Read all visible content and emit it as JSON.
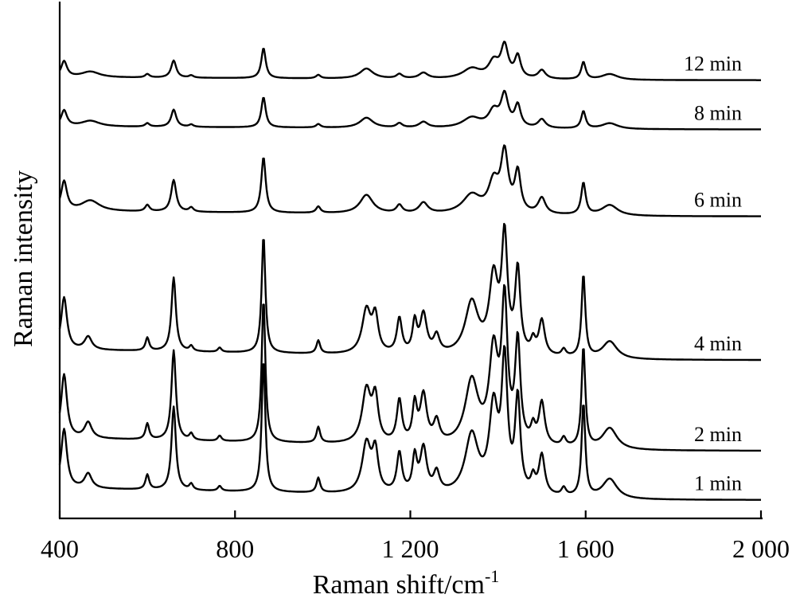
{
  "chart_data": {
    "type": "line",
    "xlabel": "Raman shift/cm",
    "xlabel_superscript": "-1",
    "ylabel": "Raman intensity",
    "xlim": [
      400,
      2000
    ],
    "x_ticks": [
      400,
      800,
      1200,
      1600,
      2000
    ],
    "x_tick_labels": [
      "400",
      "800",
      "1 200",
      "1 600",
      "2 000"
    ],
    "y_ticks": [],
    "grid": false,
    "legend": "none",
    "stacking": "vertically offset spectra, labels at right end of each trace",
    "series": [
      {
        "name": "12 min",
        "offset": 5.55,
        "scale": 0.38,
        "tilt": 0.1,
        "peaks": [
          [
            410,
            0.55,
            8
          ],
          [
            470,
            0.2,
            25
          ],
          [
            600,
            0.12,
            6
          ],
          [
            660,
            0.6,
            7
          ],
          [
            700,
            0.08,
            6
          ],
          [
            865,
            1.05,
            6
          ],
          [
            990,
            0.12,
            6
          ],
          [
            1100,
            0.35,
            18
          ],
          [
            1175,
            0.15,
            8
          ],
          [
            1230,
            0.2,
            12
          ],
          [
            1340,
            0.35,
            25
          ],
          [
            1390,
            0.55,
            14
          ],
          [
            1415,
            1.1,
            10
          ],
          [
            1445,
            0.75,
            8
          ],
          [
            1500,
            0.3,
            10
          ],
          [
            1595,
            0.6,
            6
          ],
          [
            1655,
            0.2,
            22
          ]
        ]
      },
      {
        "name": "8 min",
        "offset": 4.9,
        "scale": 0.38,
        "tilt": 0.1,
        "peaks": [
          [
            410,
            0.55,
            8
          ],
          [
            470,
            0.2,
            25
          ],
          [
            600,
            0.12,
            6
          ],
          [
            660,
            0.6,
            7
          ],
          [
            700,
            0.08,
            6
          ],
          [
            865,
            1.05,
            6
          ],
          [
            990,
            0.12,
            6
          ],
          [
            1100,
            0.35,
            18
          ],
          [
            1175,
            0.15,
            8
          ],
          [
            1230,
            0.2,
            12
          ],
          [
            1340,
            0.35,
            25
          ],
          [
            1390,
            0.55,
            14
          ],
          [
            1415,
            1.1,
            10
          ],
          [
            1445,
            0.75,
            8
          ],
          [
            1500,
            0.3,
            10
          ],
          [
            1595,
            0.6,
            6
          ],
          [
            1655,
            0.2,
            22
          ]
        ]
      },
      {
        "name": "6 min",
        "offset": 3.75,
        "scale": 0.7,
        "tilt": 0.1,
        "peaks": [
          [
            410,
            0.55,
            8
          ],
          [
            470,
            0.2,
            25
          ],
          [
            600,
            0.12,
            6
          ],
          [
            660,
            0.6,
            7
          ],
          [
            700,
            0.08,
            6
          ],
          [
            865,
            1.05,
            6
          ],
          [
            990,
            0.12,
            6
          ],
          [
            1100,
            0.35,
            18
          ],
          [
            1175,
            0.15,
            8
          ],
          [
            1230,
            0.2,
            12
          ],
          [
            1340,
            0.35,
            25
          ],
          [
            1390,
            0.55,
            14
          ],
          [
            1415,
            1.1,
            10
          ],
          [
            1445,
            0.75,
            8
          ],
          [
            1500,
            0.3,
            10
          ],
          [
            1595,
            0.6,
            6
          ],
          [
            1655,
            0.2,
            22
          ]
        ]
      },
      {
        "name": "4 min",
        "offset": 1.85,
        "scale": 1.15,
        "tilt": 0.12,
        "peaks": [
          [
            410,
            0.6,
            8
          ],
          [
            465,
            0.15,
            10
          ],
          [
            600,
            0.15,
            5
          ],
          [
            660,
            0.85,
            6
          ],
          [
            700,
            0.06,
            5
          ],
          [
            765,
            0.05,
            5
          ],
          [
            865,
            1.35,
            5
          ],
          [
            990,
            0.15,
            5
          ],
          [
            1100,
            0.5,
            12
          ],
          [
            1120,
            0.4,
            8
          ],
          [
            1175,
            0.4,
            7
          ],
          [
            1210,
            0.35,
            6
          ],
          [
            1230,
            0.45,
            9
          ],
          [
            1260,
            0.2,
            8
          ],
          [
            1340,
            0.6,
            18
          ],
          [
            1390,
            0.85,
            12
          ],
          [
            1415,
            1.3,
            8
          ],
          [
            1445,
            0.95,
            7
          ],
          [
            1480,
            0.15,
            6
          ],
          [
            1500,
            0.4,
            8
          ],
          [
            1550,
            0.08,
            6
          ],
          [
            1595,
            0.95,
            5
          ],
          [
            1655,
            0.2,
            20
          ]
        ]
      },
      {
        "name": "2 min",
        "offset": 0.65,
        "scale": 1.4,
        "tilt": 0.12,
        "peaks": [
          [
            410,
            0.6,
            8
          ],
          [
            465,
            0.15,
            10
          ],
          [
            600,
            0.15,
            5
          ],
          [
            660,
            0.85,
            6
          ],
          [
            700,
            0.06,
            5
          ],
          [
            765,
            0.05,
            5
          ],
          [
            865,
            1.35,
            5
          ],
          [
            990,
            0.15,
            5
          ],
          [
            1100,
            0.5,
            12
          ],
          [
            1120,
            0.4,
            8
          ],
          [
            1175,
            0.4,
            7
          ],
          [
            1210,
            0.35,
            6
          ],
          [
            1230,
            0.45,
            9
          ],
          [
            1260,
            0.2,
            8
          ],
          [
            1340,
            0.6,
            18
          ],
          [
            1390,
            0.85,
            12
          ],
          [
            1415,
            1.3,
            8
          ],
          [
            1445,
            0.95,
            7
          ],
          [
            1480,
            0.15,
            6
          ],
          [
            1500,
            0.4,
            8
          ],
          [
            1550,
            0.08,
            6
          ],
          [
            1595,
            0.95,
            5
          ],
          [
            1655,
            0.2,
            20
          ]
        ]
      },
      {
        "name": "1 min",
        "offset": 0.0,
        "scale": 1.3,
        "tilt": 0.12,
        "peaks": [
          [
            410,
            0.6,
            8
          ],
          [
            465,
            0.15,
            10
          ],
          [
            600,
            0.15,
            5
          ],
          [
            660,
            0.85,
            6
          ],
          [
            700,
            0.06,
            5
          ],
          [
            765,
            0.05,
            5
          ],
          [
            865,
            1.35,
            5
          ],
          [
            990,
            0.15,
            5
          ],
          [
            1100,
            0.5,
            12
          ],
          [
            1120,
            0.4,
            8
          ],
          [
            1175,
            0.4,
            7
          ],
          [
            1210,
            0.35,
            6
          ],
          [
            1230,
            0.45,
            9
          ],
          [
            1260,
            0.2,
            8
          ],
          [
            1340,
            0.6,
            18
          ],
          [
            1390,
            0.85,
            12
          ],
          [
            1415,
            1.3,
            8
          ],
          [
            1445,
            0.95,
            7
          ],
          [
            1480,
            0.15,
            6
          ],
          [
            1500,
            0.4,
            8
          ],
          [
            1550,
            0.08,
            6
          ],
          [
            1595,
            0.95,
            5
          ],
          [
            1655,
            0.2,
            20
          ]
        ]
      }
    ]
  }
}
